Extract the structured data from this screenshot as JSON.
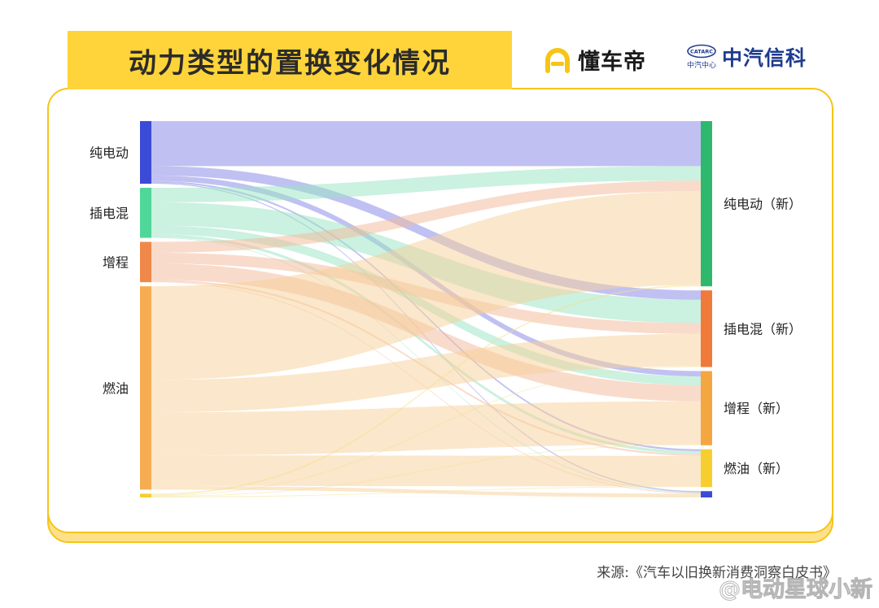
{
  "title": "动力类型的置换变化情况",
  "logos": {
    "dongchedi": "懂车帝",
    "catarc_badge": "CATARC",
    "catarc_sub": "中汽中心",
    "catarc_name": "中汽信科"
  },
  "source": "来源:《汽车以旧换新消费洞察白皮书》",
  "watermark": "@电动星球小新",
  "colors": {
    "banner": "#ffd43a",
    "card_border": "#f5c518",
    "pure_ev_source": "#3b4bd8",
    "phev_source": "#4fd79a",
    "erev_source": "#f0884a",
    "ice_source": "#f6ad52",
    "pure_ev_target": "#2eb86e",
    "phev_target": "#ef7a3a",
    "erev_target": "#f4a640",
    "ice_target": "#f6cf2e",
    "other_target": "#3b4bd8"
  },
  "chart_data": {
    "type": "sankey",
    "title": "动力类型的置换变化情况",
    "sources": [
      "纯电动",
      "插电混",
      "增程",
      "燃油",
      ""
    ],
    "targets": [
      "纯电动（新）",
      "插电混（新）",
      "增程（新）",
      "燃油（新）",
      ""
    ],
    "source_colors": [
      "#3b4bd8",
      "#4fd79a",
      "#f0884a",
      "#f6ad52",
      "#f6cf2e"
    ],
    "target_colors": [
      "#2eb86e",
      "#ef7a3a",
      "#f4a640",
      "#f6cf2e",
      "#3b4bd8"
    ],
    "link_colors": [
      "#8d8ee8",
      "#97e3c2",
      "#f3b898",
      "#f8cf98",
      "#f6e08a"
    ],
    "flows": [
      [
        12.5,
        2.6,
        1.5,
        0.5,
        0.3
      ],
      [
        4.0,
        6.5,
        2.4,
        0.8,
        0.2
      ],
      [
        3.0,
        3.0,
        4.5,
        0.5,
        0.2
      ],
      [
        26.0,
        9.0,
        12.0,
        8.5,
        1.0
      ],
      [
        0.4,
        0.2,
        0.2,
        0.2,
        0.05
      ]
    ]
  }
}
